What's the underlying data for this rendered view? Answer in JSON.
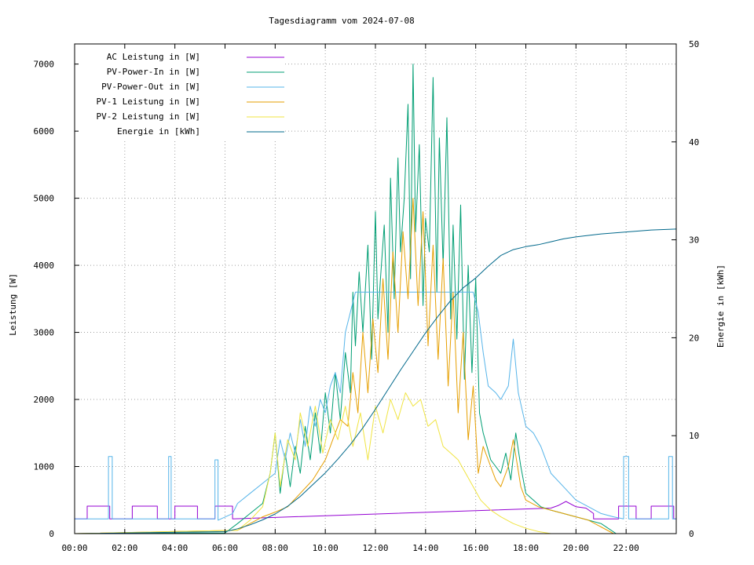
{
  "chart_data": {
    "type": "line",
    "title": "Tagesdiagramm vom 2024-07-08",
    "xlabel": "",
    "ylabel": "Leistung [W]",
    "y2label": "Energie in [kWh]",
    "xlim": [
      0,
      24
    ],
    "ylim": [
      0,
      7300
    ],
    "y2lim": [
      0,
      50
    ],
    "grid": true,
    "legend_position": "top-left",
    "x_ticks": [
      {
        "value": 0,
        "label": "00:00"
      },
      {
        "value": 2,
        "label": "02:00"
      },
      {
        "value": 4,
        "label": "04:00"
      },
      {
        "value": 6,
        "label": "06:00"
      },
      {
        "value": 8,
        "label": "08:00"
      },
      {
        "value": 10,
        "label": "10:00"
      },
      {
        "value": 12,
        "label": "12:00"
      },
      {
        "value": 14,
        "label": "14:00"
      },
      {
        "value": 16,
        "label": "16:00"
      },
      {
        "value": 18,
        "label": "18:00"
      },
      {
        "value": 20,
        "label": "20:00"
      },
      {
        "value": 22,
        "label": "22:00"
      }
    ],
    "y_ticks": [
      {
        "value": 0,
        "label": "0"
      },
      {
        "value": 1000,
        "label": "1000"
      },
      {
        "value": 2000,
        "label": "2000"
      },
      {
        "value": 3000,
        "label": "3000"
      },
      {
        "value": 4000,
        "label": "4000"
      },
      {
        "value": 5000,
        "label": "5000"
      },
      {
        "value": 6000,
        "label": "6000"
      },
      {
        "value": 7000,
        "label": "7000"
      }
    ],
    "y2_ticks": [
      {
        "value": 0,
        "label": "0"
      },
      {
        "value": 10,
        "label": "10"
      },
      {
        "value": 20,
        "label": "20"
      },
      {
        "value": 30,
        "label": "30"
      },
      {
        "value": 40,
        "label": "40"
      },
      {
        "value": 50,
        "label": "50"
      }
    ],
    "series": [
      {
        "name": "AC Leistung in [W]",
        "axis": "y",
        "color": "#9400d3",
        "x": [
          0,
          0.5,
          0.5,
          1.4,
          1.4,
          2.3,
          2.3,
          3.3,
          3.3,
          4.0,
          4.0,
          4.9,
          4.9,
          5.6,
          5.6,
          6.3,
          6.3,
          19.0,
          19.3,
          19.6,
          20.0,
          20.4,
          20.7,
          20.7,
          21.7,
          21.7,
          22.4,
          22.4,
          23.0,
          23.0,
          23.9,
          23.9,
          24
        ],
        "y": [
          220,
          220,
          410,
          410,
          220,
          220,
          410,
          410,
          220,
          220,
          410,
          410,
          220,
          220,
          410,
          410,
          220,
          380,
          420,
          480,
          400,
          380,
          300,
          220,
          220,
          410,
          410,
          220,
          220,
          410,
          410,
          220,
          220
        ]
      },
      {
        "name": "PV-Power-In in [W]",
        "axis": "y",
        "color": "#009e73",
        "x": [
          0,
          6.0,
          6.5,
          7.0,
          7.5,
          7.8,
          8.0,
          8.2,
          8.4,
          8.6,
          8.8,
          9.0,
          9.2,
          9.4,
          9.6,
          9.8,
          10.0,
          10.2,
          10.4,
          10.6,
          10.8,
          11.0,
          11.1,
          11.2,
          11.35,
          11.5,
          11.7,
          11.85,
          12.0,
          12.1,
          12.2,
          12.35,
          12.5,
          12.6,
          12.75,
          12.9,
          13.0,
          13.15,
          13.3,
          13.4,
          13.5,
          13.6,
          13.75,
          13.9,
          14.0,
          14.15,
          14.3,
          14.45,
          14.55,
          14.7,
          14.85,
          15.0,
          15.1,
          15.25,
          15.4,
          15.55,
          15.7,
          15.85,
          16.0,
          16.15,
          16.3,
          16.45,
          16.6,
          16.8,
          17.0,
          17.2,
          17.4,
          17.6,
          17.8,
          18.0,
          18.3,
          18.6,
          19.0,
          19.5,
          20.0,
          20.5,
          21.0,
          21.4,
          21.6,
          24
        ],
        "y": [
          0,
          10,
          150,
          300,
          450,
          900,
          1500,
          600,
          1200,
          700,
          1300,
          900,
          1600,
          1100,
          1800,
          1200,
          2100,
          1500,
          2400,
          1700,
          2700,
          2100,
          3600,
          2800,
          3900,
          3000,
          4300,
          2600,
          4800,
          3200,
          3800,
          4600,
          3000,
          5300,
          3500,
          5600,
          4200,
          5000,
          6400,
          3800,
          7000,
          4500,
          5800,
          3400,
          4700,
          4200,
          6800,
          3600,
          5900,
          4000,
          6200,
          3200,
          4600,
          2900,
          4900,
          2300,
          4000,
          2400,
          3800,
          1800,
          1500,
          1300,
          1100,
          1000,
          900,
          1200,
          800,
          1500,
          1000,
          600,
          500,
          400,
          350,
          300,
          250,
          200,
          150,
          50,
          0,
          0
        ]
      },
      {
        "name": "PV-Power-Out in [W]",
        "axis": "y",
        "color": "#56b4e9",
        "x": [
          0,
          1.35,
          1.35,
          1.5,
          1.5,
          3.75,
          3.75,
          3.85,
          3.85,
          5.6,
          5.6,
          5.72,
          5.72,
          6.3,
          6.5,
          7.0,
          7.5,
          8.0,
          8.2,
          8.4,
          8.6,
          8.8,
          9.0,
          9.2,
          9.4,
          9.6,
          9.8,
          10.0,
          10.2,
          10.4,
          10.6,
          10.8,
          11.0,
          11.2,
          11.4,
          11.6,
          11.8,
          12.0,
          12.3,
          12.6,
          12.9,
          13.2,
          13.5,
          13.8,
          14.1,
          14.4,
          14.7,
          15.0,
          15.3,
          15.6,
          15.9,
          16.1,
          16.3,
          16.5,
          16.8,
          17.0,
          17.3,
          17.5,
          17.7,
          18.0,
          18.3,
          18.6,
          19.0,
          19.5,
          20.0,
          20.5,
          21.0,
          21.5,
          21.9,
          21.9,
          22.1,
          22.1,
          23.7,
          23.7,
          23.85,
          23.85,
          24
        ],
        "y": [
          220,
          220,
          1150,
          1150,
          220,
          220,
          1150,
          1150,
          220,
          220,
          1100,
          1100,
          200,
          300,
          450,
          600,
          750,
          900,
          1400,
          1100,
          1500,
          1200,
          1700,
          1300,
          1900,
          1600,
          2000,
          1800,
          2200,
          2400,
          2100,
          3000,
          3300,
          3600,
          3600,
          3600,
          3600,
          3600,
          3600,
          3600,
          3600,
          3600,
          3600,
          3600,
          3600,
          3600,
          3600,
          3600,
          3600,
          3600,
          3600,
          3300,
          2700,
          2200,
          2100,
          2000,
          2200,
          2900,
          2100,
          1600,
          1500,
          1300,
          900,
          700,
          500,
          400,
          300,
          250,
          220,
          1150,
          1150,
          220,
          220,
          1150,
          1150,
          220,
          220
        ]
      },
      {
        "name": "PV-1 Leistung in [W]",
        "axis": "y",
        "color": "#e69f00",
        "x": [
          0,
          6.5,
          7.0,
          7.5,
          8.0,
          8.5,
          9.0,
          9.5,
          10.0,
          10.3,
          10.6,
          10.9,
          11.1,
          11.3,
          11.5,
          11.7,
          11.9,
          12.1,
          12.3,
          12.5,
          12.7,
          12.9,
          13.1,
          13.3,
          13.5,
          13.7,
          13.9,
          14.1,
          14.3,
          14.5,
          14.7,
          14.9,
          15.1,
          15.3,
          15.5,
          15.7,
          15.9,
          16.1,
          16.3,
          16.5,
          16.8,
          17.0,
          17.3,
          17.5,
          17.8,
          18.0,
          18.5,
          19.0,
          19.5,
          20.0,
          20.5,
          21.0,
          21.5,
          24
        ],
        "y": [
          0,
          50,
          150,
          250,
          320,
          400,
          600,
          800,
          1100,
          1400,
          1700,
          1600,
          2400,
          1800,
          3000,
          2100,
          3200,
          2400,
          3800,
          2600,
          4200,
          3000,
          4500,
          3500,
          5000,
          3400,
          4800,
          2800,
          4300,
          2600,
          4100,
          2200,
          3600,
          1800,
          3000,
          1400,
          2200,
          900,
          1300,
          1100,
          800,
          700,
          1000,
          1400,
          700,
          500,
          400,
          350,
          300,
          250,
          200,
          100,
          0,
          0
        ]
      },
      {
        "name": "PV-2 Leistung in [W]",
        "axis": "y",
        "color": "#f0e442",
        "x": [
          0,
          6.5,
          7.0,
          7.5,
          7.8,
          8.0,
          8.2,
          8.5,
          8.8,
          9.0,
          9.3,
          9.6,
          9.9,
          10.2,
          10.5,
          10.8,
          11.1,
          11.4,
          11.7,
          12.0,
          12.3,
          12.6,
          12.9,
          13.2,
          13.5,
          13.8,
          14.1,
          14.4,
          14.7,
          15.0,
          15.3,
          15.6,
          15.9,
          16.2,
          16.6,
          17.0,
          17.5,
          18.0,
          18.5,
          19.0,
          24
        ],
        "y": [
          0,
          50,
          200,
          400,
          900,
          1500,
          700,
          1400,
          1100,
          1800,
          1300,
          1900,
          1200,
          1700,
          1400,
          1900,
          1300,
          1800,
          1100,
          1900,
          1500,
          2000,
          1700,
          2100,
          1900,
          2000,
          1600,
          1700,
          1300,
          1200,
          1100,
          900,
          700,
          500,
          350,
          250,
          150,
          80,
          30,
          0,
          0
        ]
      },
      {
        "name": "Energie in [kWh]",
        "axis": "y2",
        "color": "#00688b",
        "x": [
          0,
          6.0,
          6.5,
          7.0,
          7.5,
          8.0,
          8.5,
          9.0,
          9.5,
          10.0,
          10.5,
          11.0,
          11.5,
          12.0,
          12.5,
          13.0,
          13.5,
          14.0,
          14.5,
          15.0,
          15.5,
          16.0,
          16.5,
          17.0,
          17.5,
          18.0,
          18.5,
          19.0,
          19.5,
          20.0,
          21.0,
          22.0,
          23.0,
          24
        ],
        "y": [
          0,
          0.2,
          0.5,
          0.9,
          1.4,
          2.0,
          2.8,
          3.8,
          5.0,
          6.2,
          7.6,
          9.1,
          10.8,
          12.7,
          14.7,
          16.7,
          18.6,
          20.5,
          22.2,
          23.8,
          25.1,
          26.1,
          27.3,
          28.4,
          29.0,
          29.3,
          29.5,
          29.8,
          30.1,
          30.3,
          30.6,
          30.8,
          31.0,
          31.1
        ]
      }
    ]
  }
}
